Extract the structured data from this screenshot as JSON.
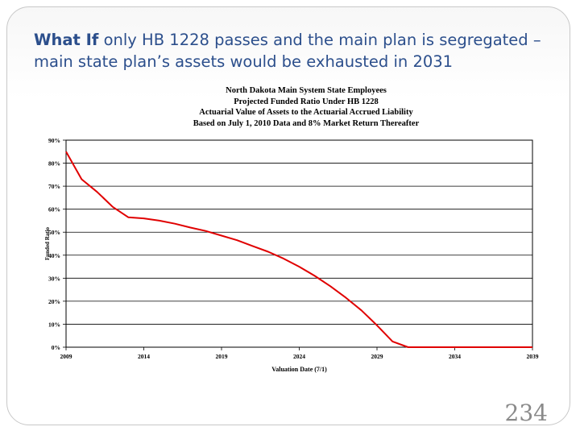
{
  "slide": {
    "title_lead": "What If",
    "title_rest": " only HB 1228 passes and the main plan is segregated – main state plan’s assets would be exhausted in 2031",
    "page_number": "234"
  },
  "colors": {
    "title": "#2c4f8c",
    "series": "#e00000",
    "page_number": "#8a8a8a"
  },
  "chart_data": {
    "type": "line",
    "title_lines": [
      "North Dakota Main System State Employees",
      "Projected Funded Ratio Under HB 1228",
      "Actuarial Value of Assets to the Actuarial Accrued Liability",
      "Based on July 1, 2010 Data and 8% Market Return Thereafter"
    ],
    "xlabel": "Valuation Date (7/1)",
    "ylabel": "Funded Ratio",
    "xlim": [
      2009,
      2039
    ],
    "ylim": [
      0,
      0.9
    ],
    "x_ticks": [
      "2009",
      "2014",
      "2019",
      "2024",
      "2029",
      "2034",
      "2039"
    ],
    "y_ticks": [
      "0%",
      "10%",
      "20%",
      "30%",
      "40%",
      "50%",
      "60%",
      "70%",
      "80%",
      "90%"
    ],
    "grid": "horizontal",
    "series": [
      {
        "x": [
          2009,
          2010,
          2011,
          2012,
          2013,
          2014,
          2015,
          2016,
          2017,
          2018,
          2019,
          2020,
          2021,
          2022,
          2023,
          2024,
          2025,
          2026,
          2027,
          2028,
          2029,
          2030,
          2031,
          2032,
          2033,
          2034,
          2035,
          2036,
          2037,
          2038,
          2039
        ],
        "y": [
          0.85,
          0.73,
          0.675,
          0.61,
          0.565,
          0.56,
          0.55,
          0.537,
          0.52,
          0.505,
          0.485,
          0.465,
          0.44,
          0.415,
          0.385,
          0.35,
          0.31,
          0.265,
          0.215,
          0.16,
          0.095,
          0.025,
          0.0,
          0.0,
          0.0,
          0.0,
          0.0,
          0.0,
          0.0,
          0.0,
          0.0
        ],
        "color": "#e00000"
      }
    ]
  }
}
